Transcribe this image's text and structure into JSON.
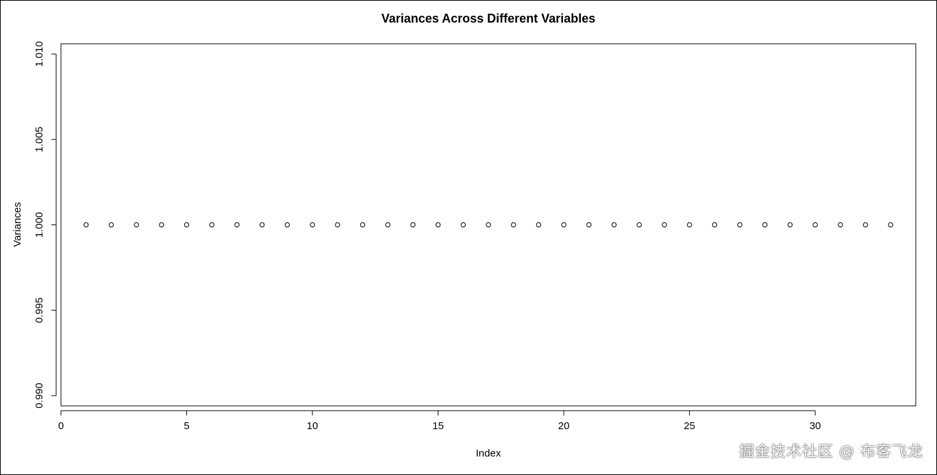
{
  "chart_data": {
    "type": "scatter",
    "title": "Variances Across Different Variables",
    "xlabel": "Index",
    "ylabel": "Variances",
    "xlim": [
      0,
      34
    ],
    "ylim": [
      0.9894,
      1.0106
    ],
    "x_ticks": [
      0,
      5,
      10,
      15,
      20,
      25,
      30
    ],
    "x_tick_labels": [
      "0",
      "5",
      "10",
      "15",
      "20",
      "25",
      "30"
    ],
    "y_ticks": [
      0.99,
      0.995,
      1.0,
      1.005,
      1.01
    ],
    "y_tick_labels": [
      "0.990",
      "0.995",
      "1.000",
      "1.005",
      "1.010"
    ],
    "grid": false,
    "marker": "open-circle",
    "series": [
      {
        "x": [
          1,
          2,
          3,
          4,
          5,
          6,
          7,
          8,
          9,
          10,
          11,
          12,
          13,
          14,
          15,
          16,
          17,
          18,
          19,
          20,
          21,
          22,
          23,
          24,
          25,
          26,
          27,
          28,
          29,
          30,
          31,
          32,
          33
        ],
        "values": [
          1,
          1,
          1,
          1,
          1,
          1,
          1,
          1,
          1,
          1,
          1,
          1,
          1,
          1,
          1,
          1,
          1,
          1,
          1,
          1,
          1,
          1,
          1,
          1,
          1,
          1,
          1,
          1,
          1,
          1,
          1,
          1,
          1
        ]
      }
    ]
  },
  "watermark": "掘金技术社区 @ 布客飞龙"
}
